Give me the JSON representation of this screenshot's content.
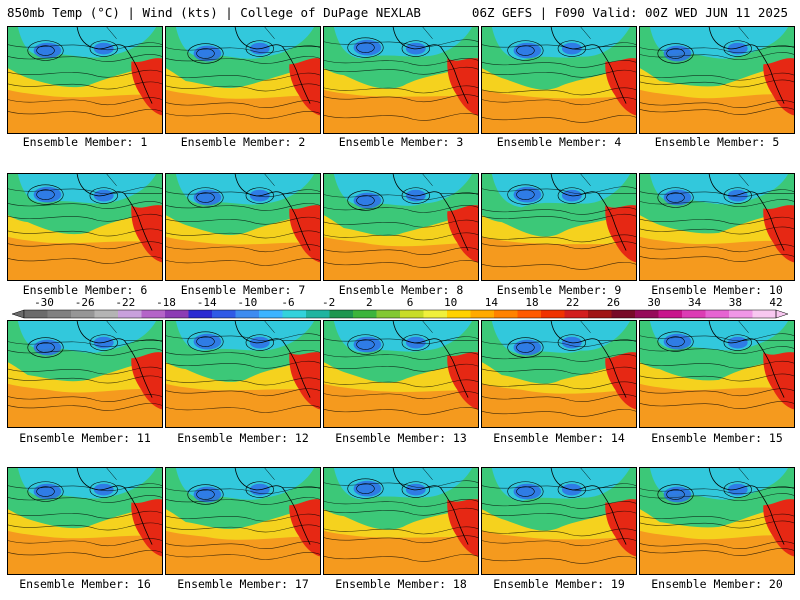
{
  "header": {
    "left": "850mb Temp (°C) | Wind (kts) | College of DuPage NEXLAB",
    "right": "06Z GEFS | F090 Valid: 00Z WED JUN 11 2025"
  },
  "member_label_prefix": "Ensemble Member: ",
  "members": [
    {
      "id": "1"
    },
    {
      "id": "2"
    },
    {
      "id": "3"
    },
    {
      "id": "4"
    },
    {
      "id": "5"
    },
    {
      "id": "6"
    },
    {
      "id": "7"
    },
    {
      "id": "8"
    },
    {
      "id": "9"
    },
    {
      "id": "10"
    },
    {
      "id": "11"
    },
    {
      "id": "12"
    },
    {
      "id": "13"
    },
    {
      "id": "14"
    },
    {
      "id": "15"
    },
    {
      "id": "16"
    },
    {
      "id": "17"
    },
    {
      "id": "18"
    },
    {
      "id": "19"
    },
    {
      "id": "20"
    }
  ],
  "colorbar": {
    "ticks": [
      "-30",
      "-26",
      "-22",
      "-18",
      "-14",
      "-10",
      "-6",
      "-2",
      "2",
      "6",
      "10",
      "14",
      "18",
      "22",
      "26",
      "30",
      "34",
      "38",
      "42"
    ],
    "colors": [
      "#6b6b6b",
      "#808080",
      "#969696",
      "#b4b4b4",
      "#c8a0dc",
      "#b464c8",
      "#8c3cb4",
      "#2a2ad2",
      "#2f5ae6",
      "#3d8cf0",
      "#3cb4ff",
      "#32d2dc",
      "#20b4a0",
      "#1e9650",
      "#3cb43c",
      "#82c832",
      "#c8dc28",
      "#f0f03c",
      "#ffd200",
      "#ffaa00",
      "#ff8200",
      "#ff5a00",
      "#f03200",
      "#d21e1e",
      "#a01414",
      "#780a28",
      "#960a5a",
      "#c8148c",
      "#dc3cb4",
      "#e664d2",
      "#f096e6",
      "#f8c8f0"
    ]
  },
  "map_colors": {
    "warm": "#f59a1e",
    "mild": "#f5d21e",
    "cool": "#3cc878",
    "cold": "#32c8dc",
    "coldest": "#2f6ee6",
    "hot": "#e62814",
    "land_line": "#000000"
  }
}
